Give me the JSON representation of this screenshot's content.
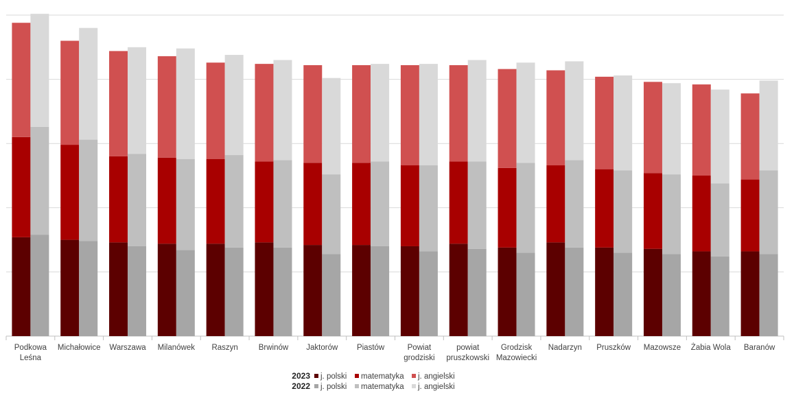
{
  "chart_data": {
    "type": "bar",
    "stacked": true,
    "grouped_by_year": true,
    "title": "",
    "xlabel": "",
    "ylabel": "",
    "ylim": [
      0,
      250
    ],
    "grid": "horizontal",
    "legend_position": "bottom",
    "categories": [
      [
        "Podkowa",
        "Leśna"
      ],
      [
        "Michałowice"
      ],
      [
        "Warszawa"
      ],
      [
        "Milanówek"
      ],
      [
        "Raszyn"
      ],
      [
        "Brwinów"
      ],
      [
        "Jaktorów"
      ],
      [
        "Piastów"
      ],
      [
        "Powiat",
        "grodziski"
      ],
      [
        "powiat",
        "pruszkowski"
      ],
      [
        "Grodzisk",
        "Mazowiecki"
      ],
      [
        "Nadarzyn"
      ],
      [
        "Pruszków"
      ],
      [
        "Mazowsze"
      ],
      [
        "Żabia Wola"
      ],
      [
        "Baranów"
      ]
    ],
    "groups": [
      {
        "year": "2023",
        "series": [
          {
            "name": "j. polski",
            "color": "#5c0000",
            "values": [
              77,
              75,
              73,
              72,
              72,
              73,
              71,
              71,
              70,
              72,
              69,
              73,
              69,
              68,
              66,
              66
            ]
          },
          {
            "name": "matematyka",
            "color": "#a80000",
            "values": [
              78,
              74,
              67,
              67,
              66,
              63,
              64,
              64,
              63,
              64,
              62,
              60,
              61,
              59,
              59,
              56
            ]
          },
          {
            "name": "j. angielski",
            "color": "#d05050",
            "values": [
              89,
              81,
              82,
              79,
              75,
              76,
              76,
              76,
              78,
              75,
              77,
              74,
              72,
              71,
              71,
              67
            ]
          }
        ]
      },
      {
        "year": "2022",
        "series": [
          {
            "name": "j. polski",
            "color": "#a6a6a6",
            "values": [
              79,
              74,
              70,
              67,
              69,
              69,
              64,
              70,
              66,
              68,
              65,
              69,
              65,
              64,
              62,
              64
            ]
          },
          {
            "name": "matematyka",
            "color": "#bfbfbf",
            "values": [
              84,
              79,
              72,
              71,
              72,
              68,
              62,
              66,
              67,
              68,
              70,
              68,
              64,
              62,
              57,
              65
            ]
          },
          {
            "name": "j. angielski",
            "color": "#d9d9d9",
            "values": [
              88,
              87,
              83,
              86,
              78,
              78,
              75,
              76,
              79,
              79,
              78,
              77,
              74,
              71,
              73,
              70
            ]
          }
        ]
      }
    ]
  }
}
